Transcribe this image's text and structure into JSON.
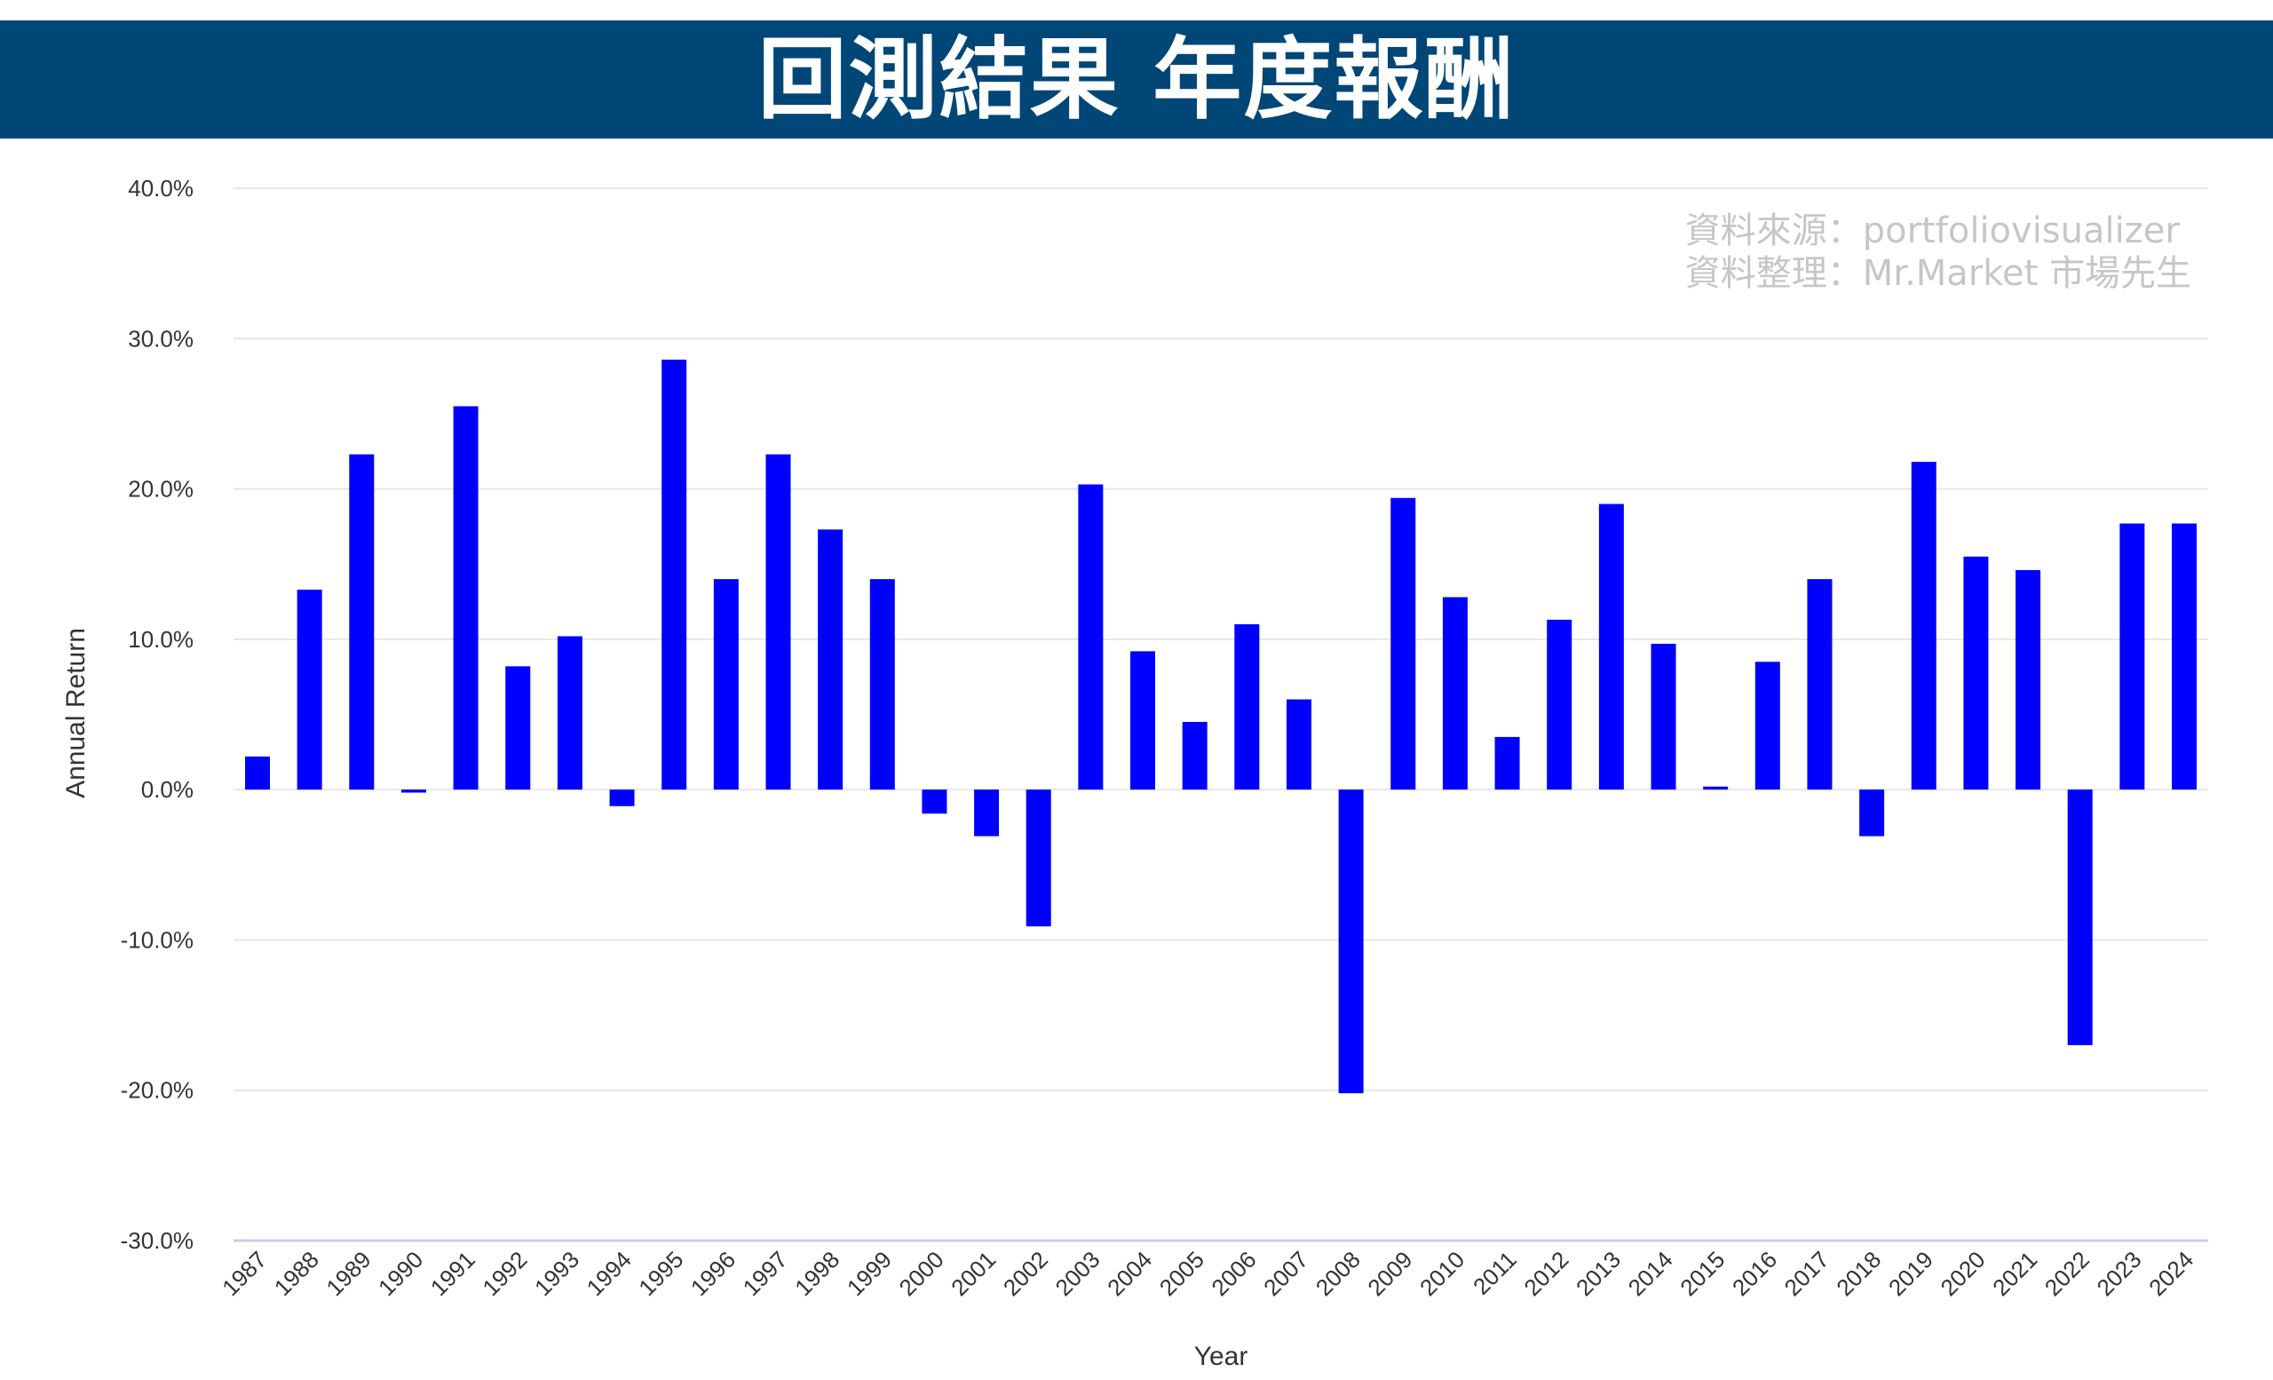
{
  "header": {
    "title": "回測結果 年度報酬",
    "background": "#004677"
  },
  "source": {
    "line1": "資料來源：portfoliovisualizer",
    "line2": "資料整理：Mr.Market 市場先生"
  },
  "chart_data": {
    "type": "bar",
    "title": "",
    "xlabel": "Year",
    "ylabel": "Annual Return",
    "ylim": [
      -30,
      40
    ],
    "yticks": [
      40,
      30,
      20,
      10,
      0,
      -10,
      -20,
      -30
    ],
    "ytick_labels": [
      "40.0%",
      "30.0%",
      "20.0%",
      "10.0%",
      "0.0%",
      "-10.0%",
      "-20.0%",
      "-30.0%"
    ],
    "grid": true,
    "bar_color": "#0000ff",
    "categories": [
      "1987",
      "1988",
      "1989",
      "1990",
      "1991",
      "1992",
      "1993",
      "1994",
      "1995",
      "1996",
      "1997",
      "1998",
      "1999",
      "2000",
      "2001",
      "2002",
      "2003",
      "2004",
      "2005",
      "2006",
      "2007",
      "2008",
      "2009",
      "2010",
      "2011",
      "2012",
      "2013",
      "2014",
      "2015",
      "2016",
      "2017",
      "2018",
      "2019",
      "2020",
      "2021",
      "2022",
      "2023",
      "2024"
    ],
    "values": [
      2.2,
      13.3,
      22.3,
      -0.2,
      25.5,
      8.2,
      10.2,
      -1.1,
      28.6,
      14.0,
      22.3,
      17.3,
      14.0,
      -1.6,
      -3.1,
      -9.1,
      20.3,
      9.2,
      4.5,
      11.0,
      6.0,
      -20.2,
      19.4,
      12.8,
      3.5,
      11.3,
      19.0,
      9.7,
      0.2,
      8.5,
      14.0,
      -3.1,
      21.8,
      15.5,
      14.6,
      -17.0,
      17.7,
      17.7
    ]
  }
}
